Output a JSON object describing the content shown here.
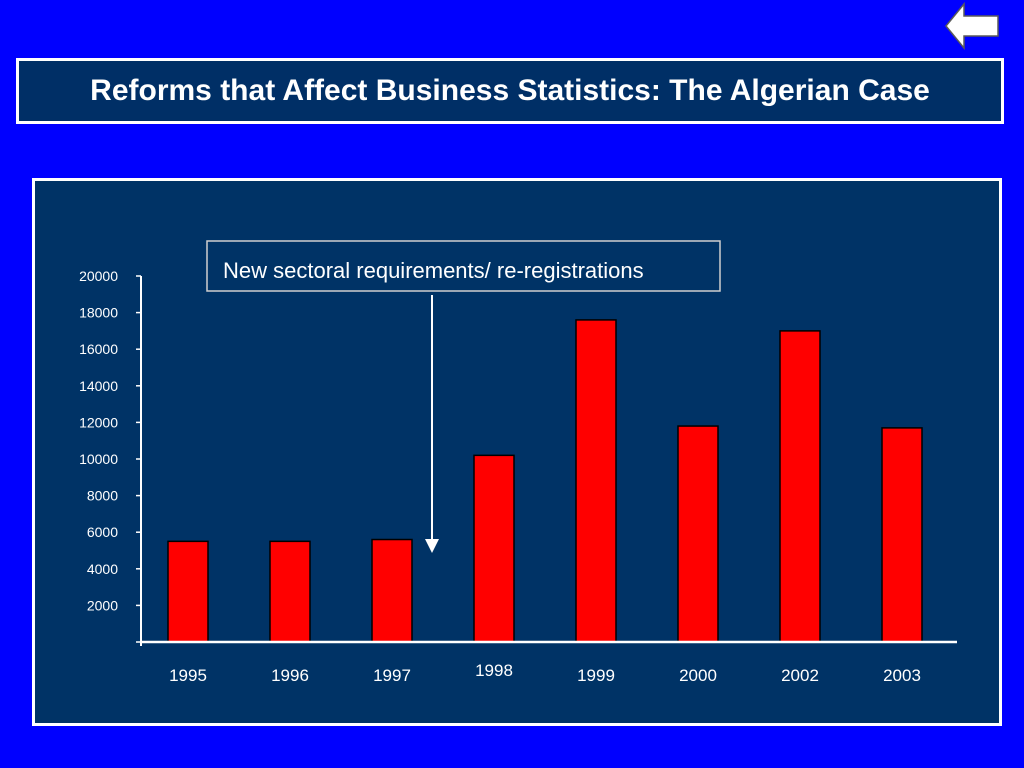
{
  "nav": {
    "back_icon": "left-arrow-icon"
  },
  "slide": {
    "title": "Reforms that Affect Business Statistics: The Algerian Case"
  },
  "colors": {
    "background": "#0000ff",
    "panel": "#003366",
    "bar": "#ff0000",
    "text": "#ffffff"
  },
  "chart_data": {
    "type": "bar",
    "categories": [
      "1995",
      "1996",
      "1997",
      "1998",
      "1999",
      "2000",
      "2002",
      "2003"
    ],
    "values": [
      5500,
      5500,
      5600,
      10200,
      17600,
      11800,
      17000,
      11700
    ],
    "yticks": [
      "2000",
      "4000",
      "6000",
      "8000",
      "10000",
      "12000",
      "14000",
      "16000",
      "18000",
      "20000"
    ],
    "ylim": [
      0,
      20000
    ],
    "grid": false,
    "annotation": {
      "text": "New sectoral requirements/ re-registrations",
      "points_to": "1997"
    }
  }
}
